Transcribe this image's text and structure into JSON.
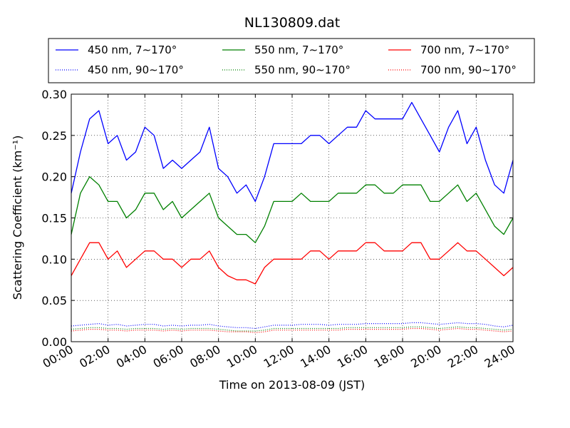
{
  "chart_data": {
    "type": "line",
    "title": "NL130809.dat",
    "xlabel": "Time on 2013-08-09 (JST)",
    "ylabel": "Scattering Coefficient (km⁻¹)",
    "xlim": [
      "00:00",
      "24:00"
    ],
    "ylim": [
      0.0,
      0.3
    ],
    "grid": true,
    "legend_position": "top (above plot), 3 columns",
    "x_ticks": [
      "00:00",
      "02:00",
      "04:00",
      "06:00",
      "08:00",
      "10:00",
      "12:00",
      "14:00",
      "16:00",
      "18:00",
      "20:00",
      "22:00",
      "24:00"
    ],
    "y_ticks": [
      "0.00",
      "0.05",
      "0.10",
      "0.15",
      "0.20",
      "0.25",
      "0.30"
    ],
    "x_hours": [
      0,
      0.5,
      1,
      1.5,
      2,
      2.5,
      3,
      3.5,
      4,
      4.5,
      5,
      5.5,
      6,
      6.5,
      7,
      7.5,
      8,
      8.5,
      9,
      9.5,
      10,
      10.5,
      11,
      11.5,
      12,
      12.5,
      13,
      13.5,
      14,
      14.5,
      15,
      15.5,
      16,
      16.5,
      17,
      17.5,
      18,
      18.5,
      19,
      19.5,
      20,
      20.5,
      21,
      21.5,
      22,
      22.5,
      23,
      23.5,
      24
    ],
    "series": [
      {
        "name": "450 nm, 7∼170°",
        "color": "#0000ff",
        "style": "solid",
        "values": [
          0.18,
          0.23,
          0.27,
          0.28,
          0.24,
          0.25,
          0.22,
          0.23,
          0.26,
          0.25,
          0.21,
          0.22,
          0.21,
          0.22,
          0.23,
          0.26,
          0.21,
          0.2,
          0.18,
          0.19,
          0.17,
          0.2,
          0.24,
          0.24,
          0.24,
          0.24,
          0.25,
          0.25,
          0.24,
          0.25,
          0.26,
          0.26,
          0.28,
          0.27,
          0.27,
          0.27,
          0.27,
          0.29,
          0.27,
          0.25,
          0.23,
          0.26,
          0.28,
          0.24,
          0.26,
          0.22,
          0.19,
          0.18,
          0.22
        ]
      },
      {
        "name": "550 nm, 7∼170°",
        "color": "#008000",
        "style": "solid",
        "values": [
          0.13,
          0.18,
          0.2,
          0.19,
          0.17,
          0.17,
          0.15,
          0.16,
          0.18,
          0.18,
          0.16,
          0.17,
          0.15,
          0.16,
          0.17,
          0.18,
          0.15,
          0.14,
          0.13,
          0.13,
          0.12,
          0.14,
          0.17,
          0.17,
          0.17,
          0.18,
          0.17,
          0.17,
          0.17,
          0.18,
          0.18,
          0.18,
          0.19,
          0.19,
          0.18,
          0.18,
          0.19,
          0.19,
          0.19,
          0.17,
          0.17,
          0.18,
          0.19,
          0.17,
          0.18,
          0.16,
          0.14,
          0.13,
          0.15
        ]
      },
      {
        "name": "700 nm, 7∼170°",
        "color": "#ff0000",
        "style": "solid",
        "values": [
          0.08,
          0.1,
          0.12,
          0.12,
          0.1,
          0.11,
          0.09,
          0.1,
          0.11,
          0.11,
          0.1,
          0.1,
          0.09,
          0.1,
          0.1,
          0.11,
          0.09,
          0.08,
          0.075,
          0.075,
          0.07,
          0.09,
          0.1,
          0.1,
          0.1,
          0.1,
          0.11,
          0.11,
          0.1,
          0.11,
          0.11,
          0.11,
          0.12,
          0.12,
          0.11,
          0.11,
          0.11,
          0.12,
          0.12,
          0.1,
          0.1,
          0.11,
          0.12,
          0.11,
          0.11,
          0.1,
          0.09,
          0.08,
          0.09
        ]
      },
      {
        "name": "450 nm, 90∼170°",
        "color": "#0000ff",
        "style": "dotted",
        "values": [
          0.019,
          0.02,
          0.021,
          0.022,
          0.02,
          0.021,
          0.019,
          0.02,
          0.021,
          0.021,
          0.019,
          0.02,
          0.019,
          0.02,
          0.02,
          0.021,
          0.019,
          0.018,
          0.017,
          0.017,
          0.016,
          0.018,
          0.02,
          0.02,
          0.02,
          0.021,
          0.021,
          0.021,
          0.02,
          0.021,
          0.021,
          0.021,
          0.022,
          0.022,
          0.022,
          0.022,
          0.022,
          0.023,
          0.023,
          0.022,
          0.021,
          0.022,
          0.023,
          0.022,
          0.022,
          0.021,
          0.019,
          0.018,
          0.02
        ]
      },
      {
        "name": "550 nm, 90∼170°",
        "color": "#008000",
        "style": "dotted",
        "values": [
          0.015,
          0.016,
          0.017,
          0.017,
          0.016,
          0.016,
          0.015,
          0.016,
          0.016,
          0.016,
          0.015,
          0.016,
          0.015,
          0.016,
          0.016,
          0.016,
          0.015,
          0.014,
          0.013,
          0.013,
          0.013,
          0.014,
          0.016,
          0.016,
          0.016,
          0.016,
          0.016,
          0.016,
          0.016,
          0.016,
          0.017,
          0.017,
          0.017,
          0.017,
          0.017,
          0.017,
          0.017,
          0.018,
          0.018,
          0.017,
          0.016,
          0.017,
          0.018,
          0.017,
          0.017,
          0.016,
          0.015,
          0.014,
          0.015
        ]
      },
      {
        "name": "700 nm, 90∼170°",
        "color": "#ff0000",
        "style": "dotted",
        "values": [
          0.013,
          0.014,
          0.015,
          0.015,
          0.014,
          0.014,
          0.013,
          0.014,
          0.014,
          0.014,
          0.013,
          0.014,
          0.013,
          0.014,
          0.014,
          0.014,
          0.013,
          0.012,
          0.012,
          0.012,
          0.011,
          0.012,
          0.014,
          0.014,
          0.014,
          0.014,
          0.014,
          0.014,
          0.014,
          0.014,
          0.015,
          0.015,
          0.015,
          0.015,
          0.015,
          0.015,
          0.015,
          0.016,
          0.016,
          0.015,
          0.014,
          0.015,
          0.016,
          0.015,
          0.015,
          0.014,
          0.013,
          0.012,
          0.013
        ]
      }
    ]
  }
}
